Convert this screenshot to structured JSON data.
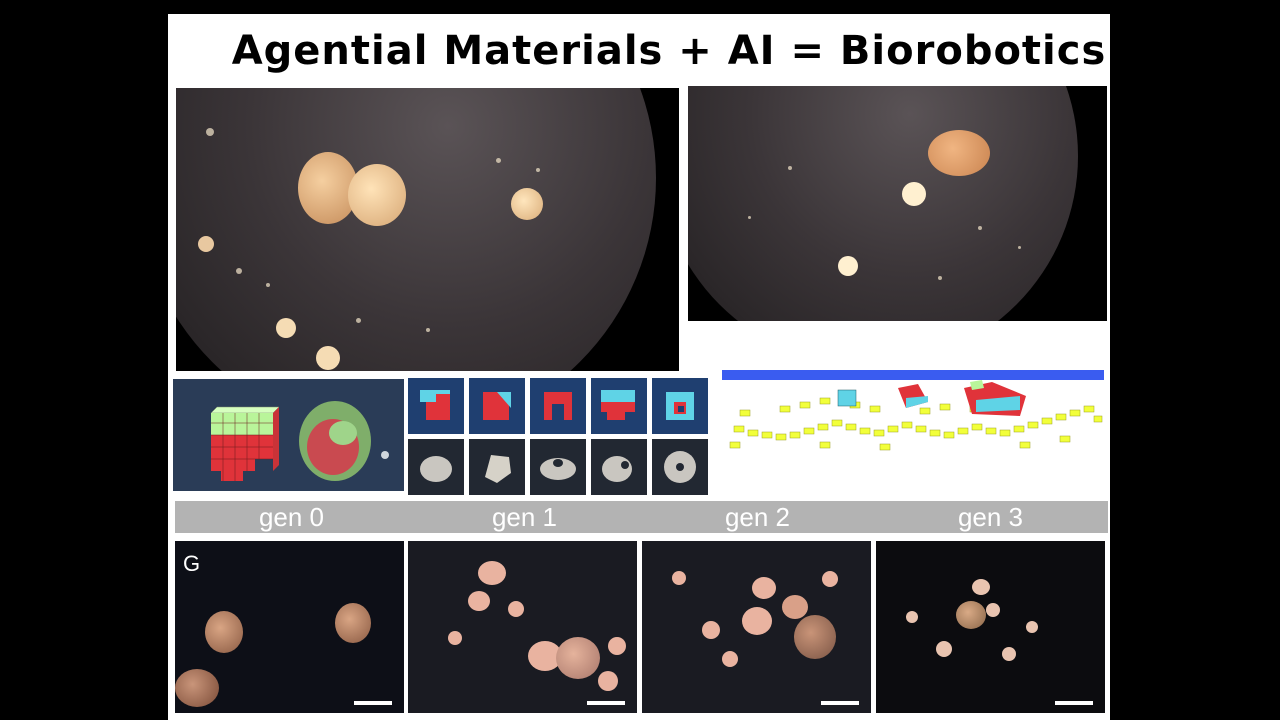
{
  "slide": {
    "title": "Agential Materials + AI = Biorobotics",
    "generations": [
      {
        "label": "gen 0"
      },
      {
        "label": "gen 1"
      },
      {
        "label": "gen 2"
      },
      {
        "label": "gen 3"
      }
    ],
    "panel_letter": "G"
  },
  "colors": {
    "background": "#000000",
    "slide": "#ffffff",
    "gen_bar": "#b3b3b3",
    "voxel_red": "#e0333a",
    "voxel_green": "#b9f59a",
    "voxel_cyan": "#5fd3e6",
    "sim_floor_blue": "#3a5cf0",
    "sim_trail_yellow": "#f2ff3a"
  }
}
